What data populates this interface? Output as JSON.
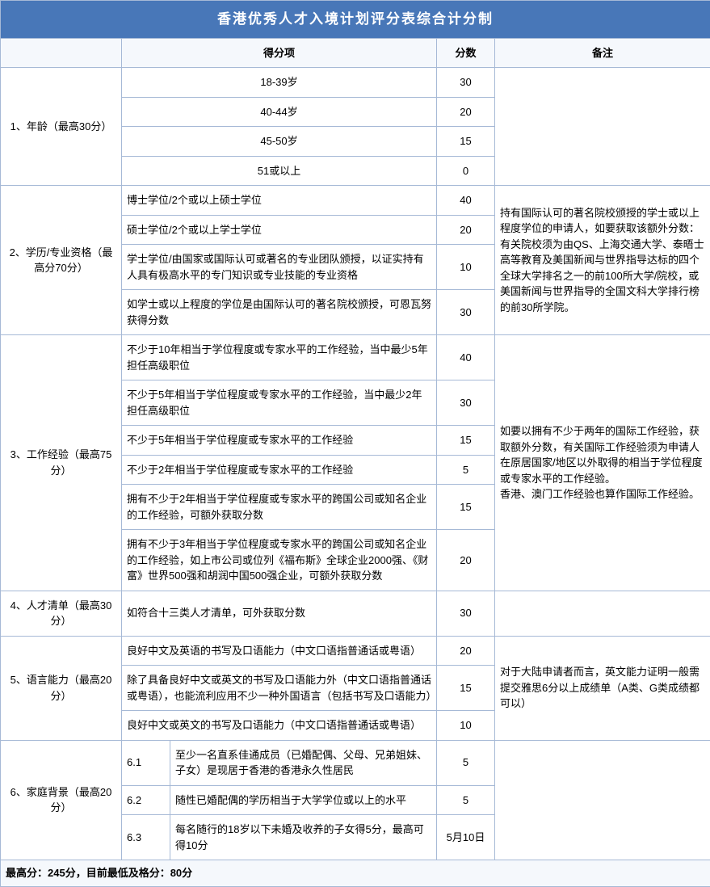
{
  "colors": {
    "header_bg": "#4877b8",
    "header_fg": "#ffffff",
    "border": "#a6b9d6",
    "subheader_bg": "#f5f8fc"
  },
  "title": "香港优秀人才入境计划评分表综合计分制",
  "headers": {
    "item": "得分项",
    "score": "分数",
    "remark": "备注"
  },
  "cat1": {
    "name": "1、年龄（最高30分）",
    "r1_item": "18-39岁",
    "r1_score": "30",
    "r2_item": "40-44岁",
    "r2_score": "20",
    "r3_item": "45-50岁",
    "r3_score": "15",
    "r4_item": "51或以上",
    "r4_score": "0",
    "remark": ""
  },
  "cat2": {
    "name": "2、学历/专业资格（最高分70分）",
    "r1_item": "博士学位/2个或以上硕士学位",
    "r1_score": "40",
    "r2_item": "硕士学位/2个或以上学士学位",
    "r2_score": "20",
    "r3_item": "学士学位/由国家或国际认可或著名的专业团队颁授，以证实持有人具有极高水平的专门知识或专业技能的专业资格",
    "r3_score": "10",
    "r4_item": "如学士或以上程度的学位是由国际认可的著名院校颁授，可恩瓦努获得分数",
    "r4_score": "30",
    "remark": "持有国际认可的著名院校颁授的学士或以上程度学位的申请人，如要获取该额外分数：有关院校须为由QS、上海交通大学、泰晤士高等教育及美国新闻与世界指导达标的四个全球大学排名之一的前100所大学/院校，或美国新闻与世界指导的全国文科大学排行榜的前30所学院。"
  },
  "cat3": {
    "name": "3、工作经验（最高75分）",
    "r1_item": "不少于10年相当于学位程度或专家水平的工作经验，当中最少5年担任高级职位",
    "r1_score": "40",
    "r2_item": "不少于5年相当于学位程度或专家水平的工作经验，当中最少2年担任高级职位",
    "r2_score": "30",
    "r3_item": "不少于5年相当于学位程度或专家水平的工作经验",
    "r3_score": "15",
    "r4_item": "不少于2年相当于学位程度或专家水平的工作经验",
    "r4_score": "5",
    "r5_item": "拥有不少于2年相当于学位程度或专家水平的跨国公司或知名企业的工作经验，可额外获取分数",
    "r5_score": "15",
    "r6_item": "拥有不少于3年相当于学位程度或专家水平的跨国公司或知名企业的工作经验，如上市公司或位列《福布斯》全球企业2000强、《财富》世界500强和胡润中国500强企业，可额外获取分数",
    "r6_score": "20",
    "remark": "如要以拥有不少于两年的国际工作经验，获取额外分数，有关国际工作经验须为申请人在原居国家/地区以外取得的相当于学位程度或专家水平的工作经验。\n香港、澳门工作经验也算作国际工作经验。"
  },
  "cat4": {
    "name": "4、人才清单（最高30分）",
    "r1_item": "如符合十三类人才清单，可外获取分数",
    "r1_score": "30",
    "remark": ""
  },
  "cat5": {
    "name": "5、语言能力（最高20分）",
    "r1_item": "良好中文及英语的书写及口语能力（中文口语指普通话或粤语）",
    "r1_score": "20",
    "r2_item": "除了具备良好中文或英文的书写及口语能力外（中文口语指普通话或粤语），也能流利应用不少一种外国语言（包括书写及口语能力）",
    "r2_score": "15",
    "r3_item": "良好中文或英文的书写及口语能力（中文口语指普通话或粤语）",
    "r3_score": "10",
    "remark": "对于大陆申请者而言，英文能力证明一般需提交雅思6分以上成绩单（A类、G类成绩都可以）"
  },
  "cat6": {
    "name": "6、家庭背景（最高20分）",
    "r1_sub": "6.1",
    "r1_item": "至少一名直系佳通成员（已婚配偶、父母、兄弟姐妹、子女）是现居于香港的香港永久性居民",
    "r1_score": "5",
    "r2_sub": "6.2",
    "r2_item": "随性已婚配偶的学历相当于大学学位或以上的水平",
    "r2_score": "5",
    "r3_sub": "6.3",
    "r3_item": "每名随行的18岁以下未婚及收养的子女得5分，最高可得10分",
    "r3_score": "5月10日",
    "remark": ""
  },
  "footer": "最高分：245分，目前最低及格分：80分"
}
